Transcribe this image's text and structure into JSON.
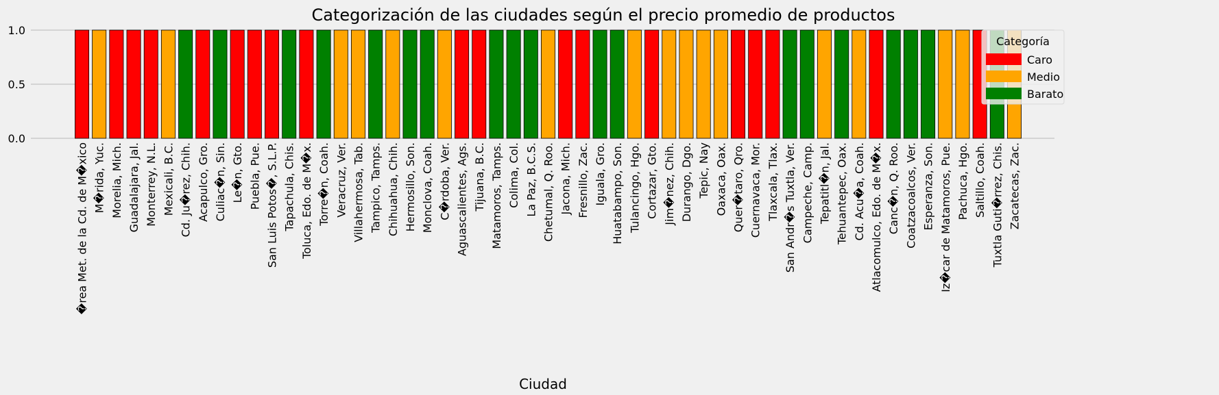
{
  "chart_data": {
    "type": "bar",
    "title": "Categorización de las ciudades según el precio promedio de productos",
    "xlabel": "Ciudad",
    "ylabel": "",
    "ylim": [
      0,
      1.05
    ],
    "yticks": [
      "0.0",
      "0.5",
      "1.0"
    ],
    "ytick_values": [
      0,
      0.5,
      1.0
    ],
    "grid": true,
    "legend": {
      "title": "Categoría",
      "placement": "top-right",
      "entries": [
        {
          "label": "Caro",
          "color": "#ff0000"
        },
        {
          "label": "Medio",
          "color": "#ffa500"
        },
        {
          "label": "Barato",
          "color": "#008000"
        }
      ]
    },
    "categories": [
      "�rea Met. de la Cd. de M�xico",
      "M�rida, Yuc.",
      "Morelia, Mich.",
      "Guadalajara, Jal.",
      "Monterrey, N.L.",
      "Mexicali, B.C.",
      "Cd. Ju�rez, Chih.",
      "Acapulco, Gro.",
      "Culiac�n, Sin.",
      "Le�n, Gto.",
      "Puebla, Pue.",
      "San Luis Potos�, S.L.P.",
      "Tapachula, Chis.",
      "Toluca, Edo. de M�x.",
      "Torre�n, Coah.",
      "Veracruz, Ver.",
      "Villahermosa, Tab.",
      "Tampico, Tamps.",
      "Chihuahua, Chih.",
      "Hermosillo, Son.",
      "Monclova, Coah.",
      "C�rdoba, Ver.",
      "Aguascalientes, Ags.",
      "Tijuana, B.C.",
      "Matamoros, Tamps.",
      "Colima, Col.",
      "La Paz, B.C.S.",
      "Chetumal, Q. Roo.",
      "Jacona, Mich.",
      "Fresnillo, Zac.",
      "Iguala, Gro.",
      "Huatabampo, Son.",
      "Tulancingo, Hgo.",
      "Cortazar, Gto.",
      "Jim�nez, Chih.",
      "Durango, Dgo.",
      "Tepic, Nay",
      "Oaxaca, Oax.",
      "Quer�taro, Qro.",
      "Cuernavaca, Mor.",
      "Tlaxcala, Tlax.",
      "San Andr�s Tuxtla, Ver.",
      "Campeche, Camp.",
      "Tepatitl�n, Jal.",
      "Tehuantepec, Oax.",
      "Cd. Acu�a, Coah.",
      "Atlacomulco, Edo. de M�x.",
      "Canc�n, Q. Roo.",
      "Coatzacoalcos, Ver.",
      "Esperanza, Son.",
      "Iz�car de Matamoros, Pue.",
      "Pachuca, Hgo.",
      "Saltillo, Coah.",
      "Tuxtla Guti�rrez, Chis.",
      "Zacatecas, Zac."
    ],
    "values": [
      1,
      1,
      1,
      1,
      1,
      1,
      1,
      1,
      1,
      1,
      1,
      1,
      1,
      1,
      1,
      1,
      1,
      1,
      1,
      1,
      1,
      1,
      1,
      1,
      1,
      1,
      1,
      1,
      1,
      1,
      1,
      1,
      1,
      1,
      1,
      1,
      1,
      1,
      1,
      1,
      1,
      1,
      1,
      1,
      1,
      1,
      1,
      1,
      1,
      1,
      1,
      1,
      1,
      1,
      1
    ],
    "category_assignments": [
      "Caro",
      "Medio",
      "Caro",
      "Caro",
      "Caro",
      "Medio",
      "Barato",
      "Caro",
      "Barato",
      "Caro",
      "Caro",
      "Caro",
      "Barato",
      "Caro",
      "Barato",
      "Medio",
      "Medio",
      "Barato",
      "Medio",
      "Barato",
      "Barato",
      "Medio",
      "Caro",
      "Caro",
      "Barato",
      "Barato",
      "Barato",
      "Medio",
      "Caro",
      "Caro",
      "Barato",
      "Barato",
      "Medio",
      "Caro",
      "Medio",
      "Medio",
      "Medio",
      "Medio",
      "Caro",
      "Caro",
      "Caro",
      "Barato",
      "Barato",
      "Medio",
      "Barato",
      "Medio",
      "Caro",
      "Barato",
      "Barato",
      "Barato",
      "Medio",
      "Medio",
      "Caro",
      "Barato",
      "Medio"
    ],
    "colors": {
      "Caro": "#ff0000",
      "Medio": "#ffa500",
      "Barato": "#008000",
      "background": "#f0f0f0",
      "grid": "#cbcbcb",
      "edge": "#000000"
    }
  }
}
